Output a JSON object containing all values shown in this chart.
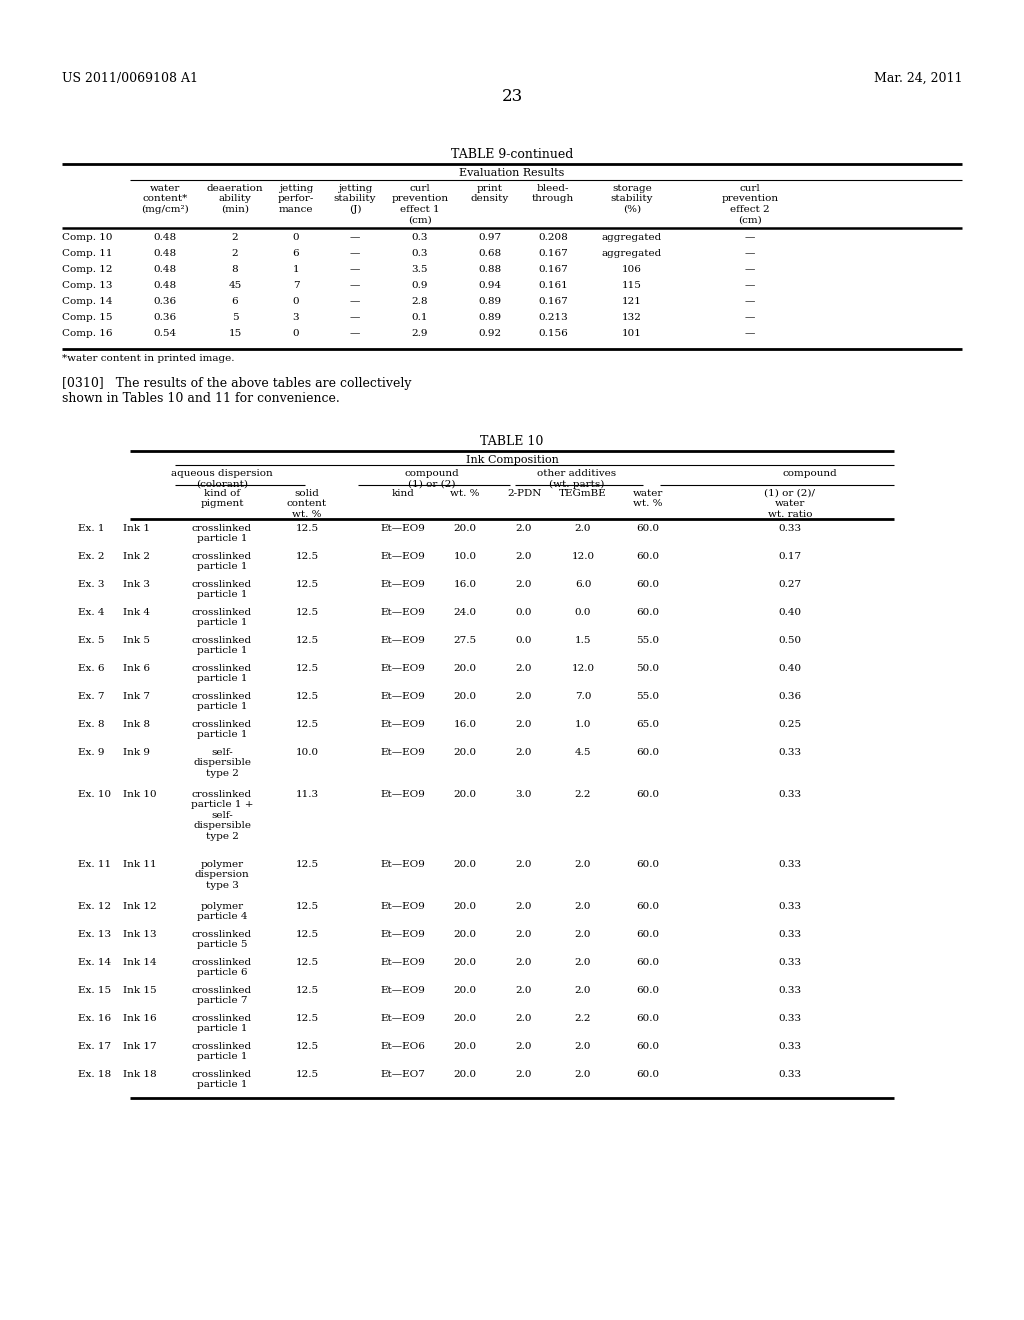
{
  "header_left": "US 2011/0069108 A1",
  "header_right": "Mar. 24, 2011",
  "page_number": "23",
  "bg_color": "#ffffff",
  "table9_title": "TABLE 9-continued",
  "table9_subtitle": "Evaluation Results",
  "table9_footnote": "*water content in printed image.",
  "paragraph": "[0310]   The results of the above tables are collectively\nshown in Tables 10 and 11 for convenience.",
  "table10_title": "TABLE 10",
  "table10_subtitle": "Ink Composition",
  "table9_rows": [
    [
      "Comp. 10",
      "0.48",
      "2",
      "0",
      "—",
      "0.3",
      "0.97",
      "0.208",
      "aggregated",
      "—"
    ],
    [
      "Comp. 11",
      "0.48",
      "2",
      "6",
      "—",
      "0.3",
      "0.68",
      "0.167",
      "aggregated",
      "—"
    ],
    [
      "Comp. 12",
      "0.48",
      "8",
      "1",
      "—",
      "3.5",
      "0.88",
      "0.167",
      "106",
      "—"
    ],
    [
      "Comp. 13",
      "0.48",
      "45",
      "7",
      "—",
      "0.9",
      "0.94",
      "0.161",
      "115",
      "—"
    ],
    [
      "Comp. 14",
      "0.36",
      "6",
      "0",
      "—",
      "2.8",
      "0.89",
      "0.167",
      "121",
      "—"
    ],
    [
      "Comp. 15",
      "0.36",
      "5",
      "3",
      "—",
      "0.1",
      "0.89",
      "0.213",
      "132",
      "—"
    ],
    [
      "Comp. 16",
      "0.54",
      "15",
      "0",
      "—",
      "2.9",
      "0.92",
      "0.156",
      "101",
      "—"
    ]
  ],
  "table10_rows": [
    [
      "Ex. 1",
      "Ink 1",
      "crosslinked\nparticle 1",
      "12.5",
      "Et—EO9",
      "20.0",
      "2.0",
      "2.0",
      "60.0",
      "0.33"
    ],
    [
      "Ex. 2",
      "Ink 2",
      "crosslinked\nparticle 1",
      "12.5",
      "Et—EO9",
      "10.0",
      "2.0",
      "12.0",
      "60.0",
      "0.17"
    ],
    [
      "Ex. 3",
      "Ink 3",
      "crosslinked\nparticle 1",
      "12.5",
      "Et—EO9",
      "16.0",
      "2.0",
      "6.0",
      "60.0",
      "0.27"
    ],
    [
      "Ex. 4",
      "Ink 4",
      "crosslinked\nparticle 1",
      "12.5",
      "Et—EO9",
      "24.0",
      "0.0",
      "0.0",
      "60.0",
      "0.40"
    ],
    [
      "Ex. 5",
      "Ink 5",
      "crosslinked\nparticle 1",
      "12.5",
      "Et—EO9",
      "27.5",
      "0.0",
      "1.5",
      "55.0",
      "0.50"
    ],
    [
      "Ex. 6",
      "Ink 6",
      "crosslinked\nparticle 1",
      "12.5",
      "Et—EO9",
      "20.0",
      "2.0",
      "12.0",
      "50.0",
      "0.40"
    ],
    [
      "Ex. 7",
      "Ink 7",
      "crosslinked\nparticle 1",
      "12.5",
      "Et—EO9",
      "20.0",
      "2.0",
      "7.0",
      "55.0",
      "0.36"
    ],
    [
      "Ex. 8",
      "Ink 8",
      "crosslinked\nparticle 1",
      "12.5",
      "Et—EO9",
      "16.0",
      "2.0",
      "1.0",
      "65.0",
      "0.25"
    ],
    [
      "Ex. 9",
      "Ink 9",
      "self-\ndispersible\ntype 2",
      "10.0",
      "Et—EO9",
      "20.0",
      "2.0",
      "4.5",
      "60.0",
      "0.33"
    ],
    [
      "Ex. 10",
      "Ink 10",
      "crosslinked\nparticle 1 +\nself-\ndispersible\ntype 2",
      "11.3",
      "Et—EO9",
      "20.0",
      "3.0",
      "2.2",
      "60.0",
      "0.33"
    ],
    [
      "Ex. 11",
      "Ink 11",
      "polymer\ndispersion\ntype 3",
      "12.5",
      "Et—EO9",
      "20.0",
      "2.0",
      "2.0",
      "60.0",
      "0.33"
    ],
    [
      "Ex. 12",
      "Ink 12",
      "polymer\nparticle 4",
      "12.5",
      "Et—EO9",
      "20.0",
      "2.0",
      "2.0",
      "60.0",
      "0.33"
    ],
    [
      "Ex. 13",
      "Ink 13",
      "crosslinked\nparticle 5",
      "12.5",
      "Et—EO9",
      "20.0",
      "2.0",
      "2.0",
      "60.0",
      "0.33"
    ],
    [
      "Ex. 14",
      "Ink 14",
      "crosslinked\nparticle 6",
      "12.5",
      "Et—EO9",
      "20.0",
      "2.0",
      "2.0",
      "60.0",
      "0.33"
    ],
    [
      "Ex. 15",
      "Ink 15",
      "crosslinked\nparticle 7",
      "12.5",
      "Et—EO9",
      "20.0",
      "2.0",
      "2.0",
      "60.0",
      "0.33"
    ],
    [
      "Ex. 16",
      "Ink 16",
      "crosslinked\nparticle 1",
      "12.5",
      "Et—EO9",
      "20.0",
      "2.0",
      "2.2",
      "60.0",
      "0.33"
    ],
    [
      "Ex. 17",
      "Ink 17",
      "crosslinked\nparticle 1",
      "12.5",
      "Et—EO6",
      "20.0",
      "2.0",
      "2.0",
      "60.0",
      "0.33"
    ],
    [
      "Ex. 18",
      "Ink 18",
      "crosslinked\nparticle 1",
      "12.5",
      "Et—EO7",
      "20.0",
      "2.0",
      "2.0",
      "60.0",
      "0.33"
    ]
  ],
  "t10_row_heights": [
    28,
    28,
    28,
    28,
    28,
    28,
    28,
    28,
    42,
    70,
    42,
    28,
    28,
    28,
    28,
    28,
    28,
    28
  ]
}
